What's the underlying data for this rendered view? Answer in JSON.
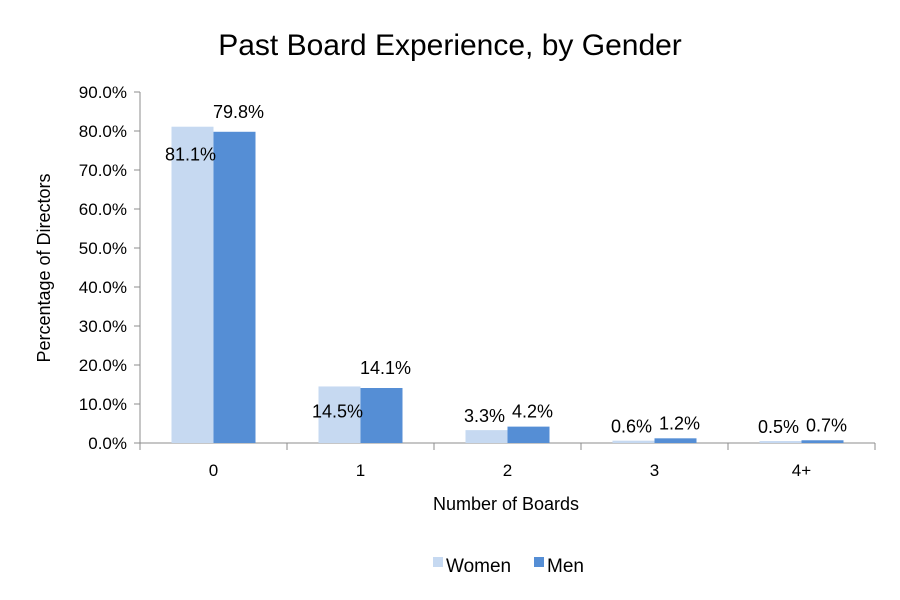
{
  "chart_data": {
    "type": "bar",
    "title": "Past Board Experience, by Gender",
    "xlabel": "Number of Boards",
    "ylabel": "Percentage of Directors",
    "categories": [
      "0",
      "1",
      "2",
      "3",
      "4+"
    ],
    "series": [
      {
        "name": "Women",
        "color": "#c6d9f1",
        "values": [
          81.1,
          14.5,
          3.3,
          0.6,
          0.5
        ],
        "labels": [
          "81.1%",
          "14.5%",
          "3.3%",
          "0.6%",
          "0.5%"
        ]
      },
      {
        "name": "Men",
        "color": "#558ed5",
        "values": [
          79.8,
          14.1,
          4.2,
          1.2,
          0.7
        ],
        "labels": [
          "79.8%",
          "14.1%",
          "4.2%",
          "1.2%",
          "0.7%"
        ]
      }
    ],
    "ylim": [
      0,
      90
    ],
    "yticks": [
      0,
      10,
      20,
      30,
      40,
      50,
      60,
      70,
      80,
      90
    ],
    "ytick_labels": [
      "0.0%",
      "10.0%",
      "20.0%",
      "30.0%",
      "40.0%",
      "50.0%",
      "60.0%",
      "70.0%",
      "80.0%",
      "90.0%"
    ],
    "grid": false,
    "legend_position": "bottom"
  }
}
